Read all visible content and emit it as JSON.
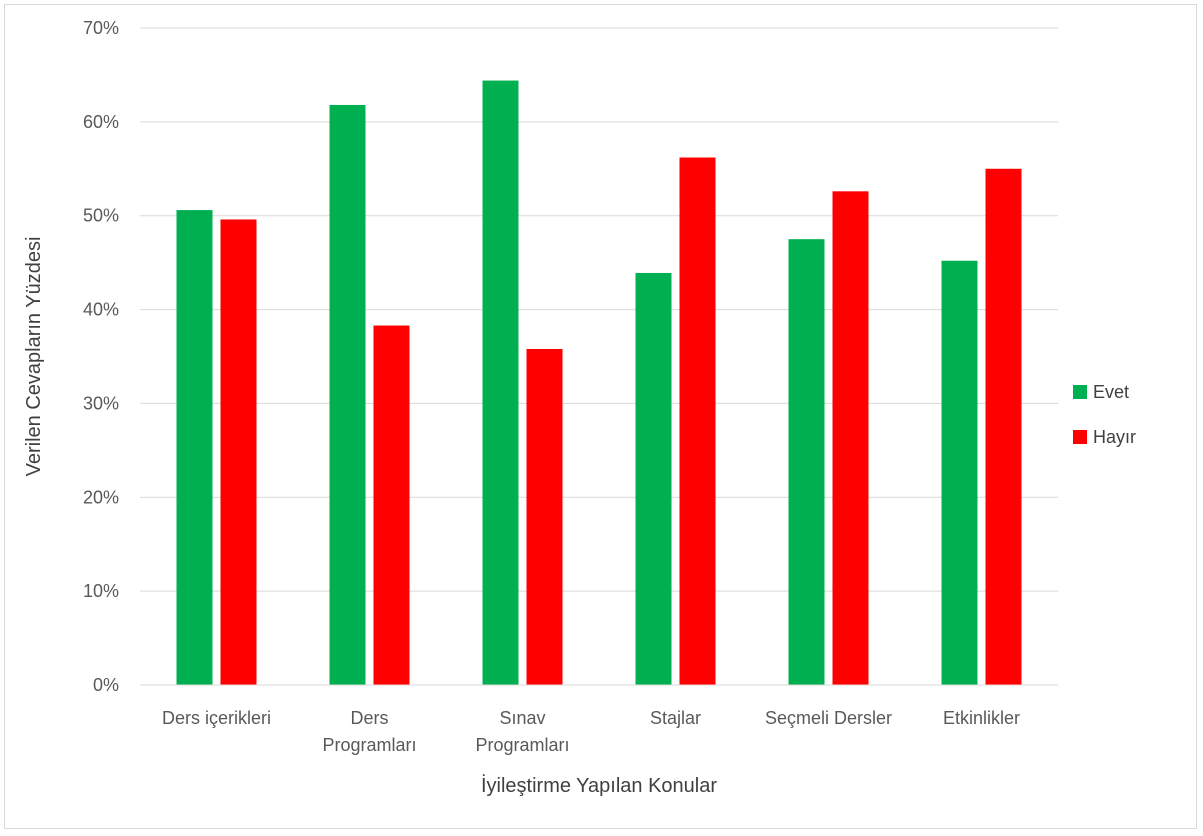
{
  "chart_data": {
    "type": "bar",
    "title": "",
    "xlabel": "İyileştirme Yapılan Konular",
    "ylabel": "Verilen Cevapların Yüzdesi",
    "categories": [
      "Ders içerikleri",
      "Ders Programları",
      "Sınav Programları",
      "Stajlar",
      "Seçmeli Dersler",
      "Etkinlikler"
    ],
    "series": [
      {
        "name": "Evet",
        "color": "#00b050",
        "values": [
          50.6,
          61.8,
          64.4,
          43.9,
          47.5,
          45.2
        ]
      },
      {
        "name": "Hayır",
        "color": "#ff0000",
        "values": [
          49.6,
          38.3,
          35.8,
          56.2,
          52.6,
          55.0
        ]
      }
    ],
    "ylim": [
      0,
      70
    ],
    "yticks": [
      "0%",
      "10%",
      "20%",
      "30%",
      "40%",
      "50%",
      "60%",
      "70%"
    ],
    "grid": true,
    "legend_position": "right"
  }
}
